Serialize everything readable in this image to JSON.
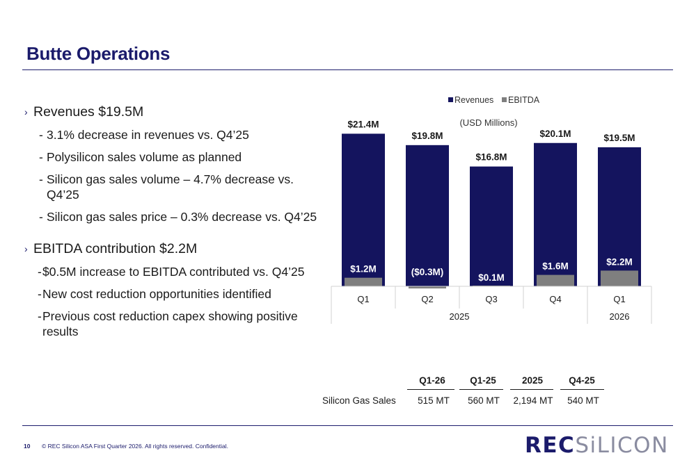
{
  "page": {
    "title": "Butte Operations",
    "footer_number": "10",
    "footer_text": "© REC Silicon ASA First Quarter 2026. All rights reserved. Confidential.",
    "logo_bold": "REC",
    "logo_thin": "SiLICON"
  },
  "bullets": {
    "b1": "Revenues $19.5M",
    "b1_items": [
      "3.1% decrease in revenues vs. Q4’25",
      "Polysilicon sales volume as planned",
      "Silicon gas sales volume –  4.7% decrease vs. Q4’25",
      "Silicon gas sales price –  0.3% decrease vs. Q4’25"
    ],
    "b2": "EBITDA contribution $2.2M",
    "b2_items": [
      "$0.5M increase to EBITDA contributed vs. Q4’25",
      "New cost reduction opportunities identified",
      "Previous cost reduction capex showing positive results"
    ]
  },
  "chart_data": {
    "type": "bar",
    "subtitle": "(USD Millions)",
    "legend_position": "top",
    "categories": [
      "Q1",
      "Q2",
      "Q3",
      "Q4",
      "Q1"
    ],
    "category_groups": [
      {
        "label": "2025",
        "span": 4
      },
      {
        "label": "2026",
        "span": 1
      }
    ],
    "series": [
      {
        "name": "Revenues",
        "color": "#14145e",
        "values": [
          21.4,
          19.8,
          16.8,
          20.1,
          19.5
        ],
        "labels": [
          "$21.4M",
          "$19.8M",
          "$16.8M",
          "$20.1M",
          "$19.5M"
        ]
      },
      {
        "name": "EBITDA",
        "color": "#7f7f7f",
        "values": [
          1.2,
          -0.3,
          0.1,
          1.6,
          2.2
        ],
        "labels": [
          "$1.2M",
          "($0.3M)",
          "$0.1M",
          "$1.6M",
          "$2.2M"
        ]
      }
    ],
    "ylim": [
      -0.5,
      23
    ],
    "grid": false
  },
  "table": {
    "row_label": "Silicon Gas Sales",
    "headers": [
      "Q1-26",
      "Q1-25",
      "2025",
      "Q4-25"
    ],
    "values": [
      "515 MT",
      "560 MT",
      "2,194 MT",
      "540 MT"
    ]
  }
}
